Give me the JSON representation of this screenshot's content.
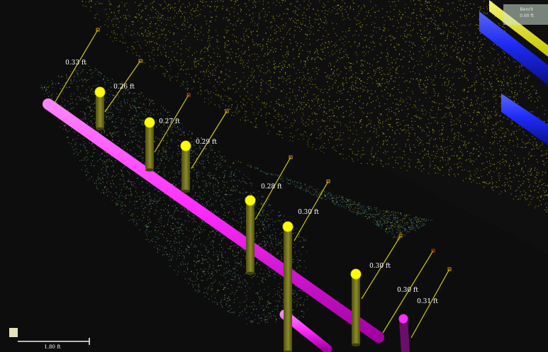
{
  "viewer": {
    "accent_colors": {
      "pipe_magenta": "#ff2cff",
      "pole_olive": "#7b7a1e",
      "pole_cap_yellow": "#ffff00",
      "measure_line": "#d7d500",
      "pipe_blue": "#1f2cff"
    }
  },
  "measurements": [
    {
      "label": "0.33 ft"
    },
    {
      "label": "0.26 ft"
    },
    {
      "label": "0.27 ft"
    },
    {
      "label": "0.29 ft"
    },
    {
      "label": "0.28 ft"
    },
    {
      "label": "0.30 ft"
    },
    {
      "label": "0.30 ft"
    },
    {
      "label": "0.30 ft"
    },
    {
      "label": "0.31 ft"
    }
  ],
  "corner_info": {
    "line1": "Bench",
    "line2": "0.00 ft"
  },
  "scale_bar": {
    "label": "1.80 ft"
  }
}
